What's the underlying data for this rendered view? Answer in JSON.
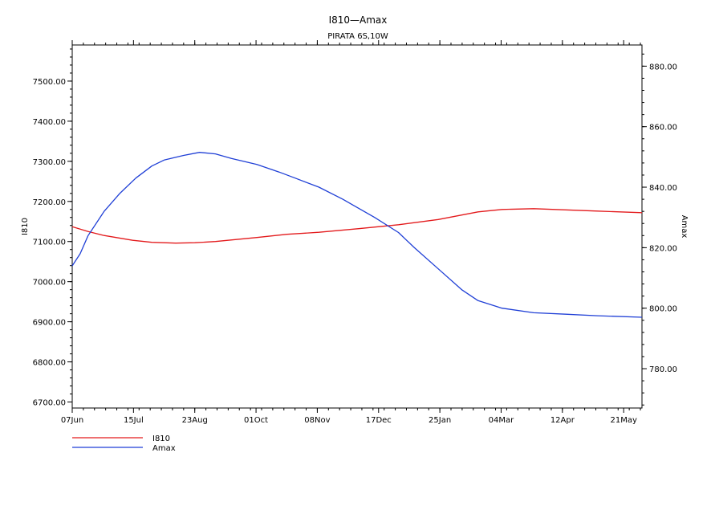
{
  "chart_data": {
    "type": "line",
    "title": "I810—Amax",
    "subtitle": "PIRATA 6S,10W",
    "ylabel_left": "I810",
    "ylabel_right": "Amax",
    "x_tick_labels": [
      "07Jun",
      "15Jul",
      "23Aug",
      "01Oct",
      "08Nov",
      "17Dec",
      "25Jan",
      "04Mar",
      "12Apr",
      "21May"
    ],
    "x_range_days": [
      0,
      358
    ],
    "y_left": {
      "ticks": [
        "6700.00",
        "6800.00",
        "6900.00",
        "7000.00",
        "7100.00",
        "7200.00",
        "7300.00",
        "7400.00",
        "7500.00"
      ],
      "ylim": [
        6685,
        7590
      ]
    },
    "y_right": {
      "ticks": [
        "780.00",
        "800.00",
        "820.00",
        "840.00",
        "860.00",
        "880.00"
      ],
      "ylim": [
        767,
        887
      ]
    },
    "grid": false,
    "legend_position": "bottom-left",
    "series": [
      {
        "name": "I810",
        "axis": "left",
        "color": "#e31a1c",
        "points": [
          [
            0,
            7137
          ],
          [
            10,
            7125
          ],
          [
            20,
            7115
          ],
          [
            38,
            7103
          ],
          [
            50,
            7098
          ],
          [
            65,
            7096
          ],
          [
            77,
            7097
          ],
          [
            90,
            7100
          ],
          [
            116,
            7110
          ],
          [
            135,
            7118
          ],
          [
            155,
            7123
          ],
          [
            180,
            7132
          ],
          [
            205,
            7142
          ],
          [
            230,
            7155
          ],
          [
            255,
            7174
          ],
          [
            270,
            7180
          ],
          [
            290,
            7182
          ],
          [
            310,
            7179
          ],
          [
            330,
            7176
          ],
          [
            358,
            7172
          ]
        ]
      },
      {
        "name": "Amax",
        "axis": "right",
        "color": "#1f3fd6",
        "points": [
          [
            0,
            814
          ],
          [
            5,
            818
          ],
          [
            10,
            824
          ],
          [
            20,
            832
          ],
          [
            30,
            838
          ],
          [
            40,
            843
          ],
          [
            50,
            847
          ],
          [
            58,
            849
          ],
          [
            70,
            850.5
          ],
          [
            80,
            851.5
          ],
          [
            90,
            851
          ],
          [
            100,
            849.5
          ],
          [
            116,
            847.5
          ],
          [
            130,
            845
          ],
          [
            140,
            843
          ],
          [
            155,
            840
          ],
          [
            170,
            836
          ],
          [
            190,
            830
          ],
          [
            205,
            825
          ],
          [
            215,
            820
          ],
          [
            230,
            813
          ],
          [
            245,
            806
          ],
          [
            255,
            802.5
          ],
          [
            270,
            800
          ],
          [
            290,
            798.5
          ],
          [
            310,
            798
          ],
          [
            330,
            797.5
          ],
          [
            358,
            797
          ]
        ]
      }
    ]
  }
}
